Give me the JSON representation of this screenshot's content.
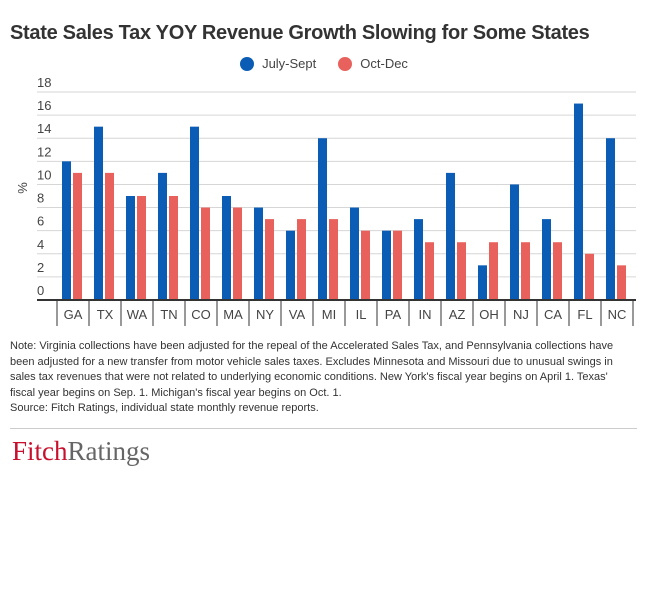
{
  "chart_data": {
    "type": "bar",
    "title": "State Sales Tax YOY Revenue Growth Slowing for Some States",
    "ylabel": "%",
    "xlabel": "",
    "ylim": [
      0,
      18
    ],
    "yticks": [
      0,
      2,
      4,
      6,
      8,
      10,
      12,
      14,
      16,
      18
    ],
    "grid": true,
    "legend_position": "top-center",
    "categories": [
      "GA",
      "TX",
      "WA",
      "TN",
      "CO",
      "MA",
      "NY",
      "VA",
      "MI",
      "IL",
      "PA",
      "IN",
      "AZ",
      "OH",
      "NJ",
      "CA",
      "FL",
      "NC"
    ],
    "series": [
      {
        "name": "July-Sept",
        "color": "#0b5cb5",
        "values": [
          12,
          15,
          9,
          11,
          15,
          9,
          8,
          6,
          14,
          8,
          6,
          7,
          11,
          3,
          10,
          7,
          17,
          14
        ]
      },
      {
        "name": "Oct-Dec",
        "color": "#e8615d",
        "values": [
          11,
          11,
          9,
          9,
          8,
          8,
          7,
          7,
          7,
          6,
          6,
          5,
          5,
          5,
          5,
          5,
          4,
          3
        ]
      }
    ]
  },
  "note": "Note: Virginia collections have been adjusted for the repeal of the Accelerated Sales Tax, and Pennsylvania collections have been adjusted for a new transfer from motor vehicle sales taxes.  Excludes Minnesota and Missouri due to unusual swings in sales tax revenues that were not related to underlying economic conditions. New York's fiscal year begins on April 1. Texas' fiscal year begins on Sep. 1. Michigan's fiscal year begins on Oct. 1.",
  "source": "Source: Fitch Ratings, individual state monthly revenue reports.",
  "logo": {
    "part1": "Fitch",
    "part2": "Ratings"
  }
}
